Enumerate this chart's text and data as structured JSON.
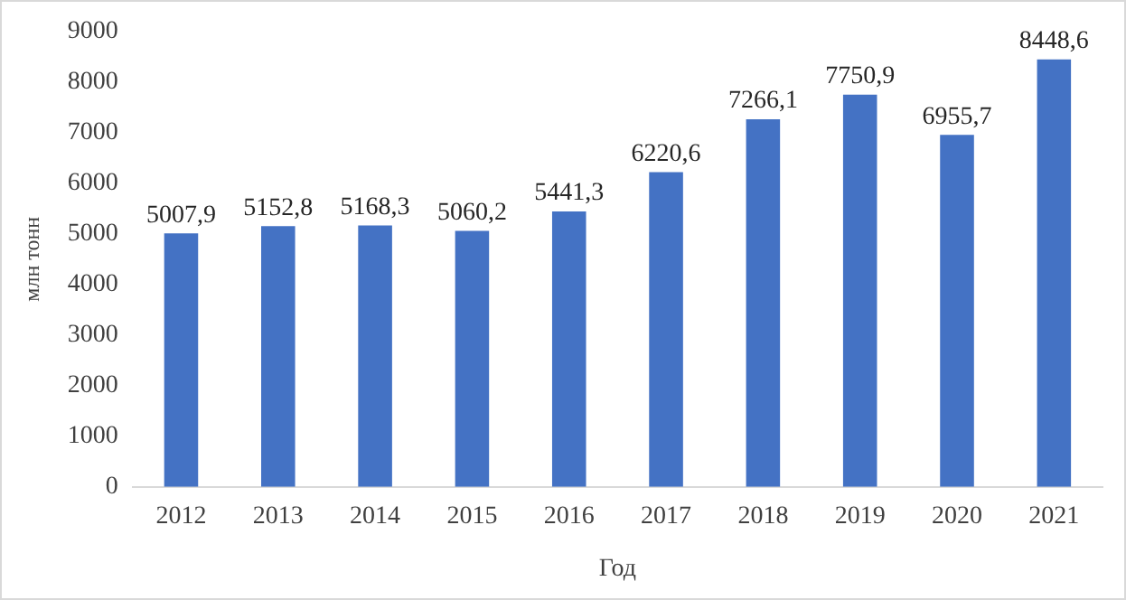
{
  "chart_data": {
    "type": "bar",
    "xlabel": "Год",
    "ylabel": "млн тонн",
    "categories": [
      "2012",
      "2013",
      "2014",
      "2015",
      "2016",
      "2017",
      "2018",
      "2019",
      "2020",
      "2021"
    ],
    "values": [
      5007.9,
      5152.8,
      5168.3,
      5060.2,
      5441.3,
      6220.6,
      7266.1,
      7750.9,
      6955.7,
      8448.6
    ],
    "value_labels": [
      "5007,9",
      "5152,8",
      "5168,3",
      "5060,2",
      "5441,3",
      "6220,6",
      "7266,1",
      "7750,9",
      "6955,7",
      "8448,6"
    ],
    "color": "#4472c4",
    "ylim": [
      0,
      9000
    ],
    "yticks": [
      0,
      1000,
      2000,
      3000,
      4000,
      5000,
      6000,
      7000,
      8000,
      9000
    ],
    "grid": false,
    "legend": false
  }
}
